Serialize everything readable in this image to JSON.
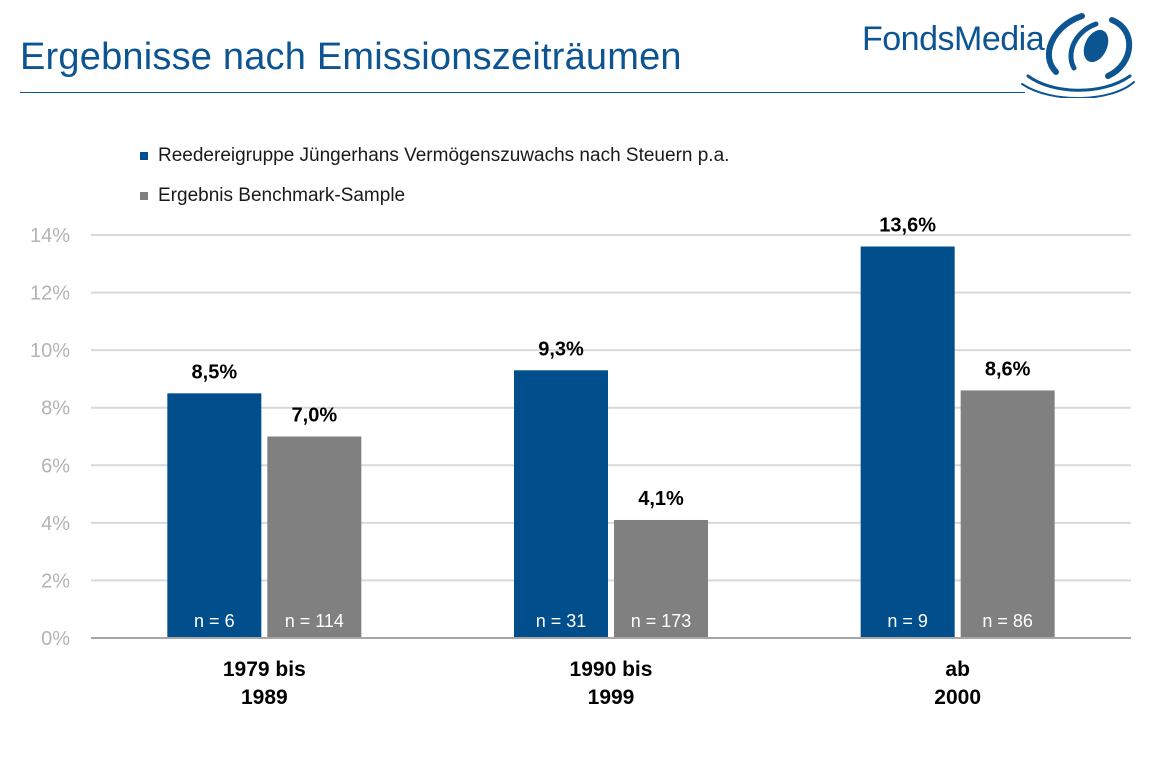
{
  "title": "Ergebnisse nach Emissionszeiträumen",
  "logo": {
    "text": "FondsMedia",
    "icon": "swirl-logo-icon"
  },
  "colors": {
    "title": "#0d5592",
    "blue": "#004e8c",
    "gray": "#808080",
    "axis_text": "#b3b3b3",
    "grid": "#d9d9d9"
  },
  "chart_data": {
    "type": "bar",
    "categories": [
      [
        "1979 bis",
        "1989"
      ],
      [
        "1990 bis",
        "1999"
      ],
      [
        "ab",
        "2000"
      ]
    ],
    "series": [
      {
        "name": "Reedereigruppe Jüngerhans Vermögenszuwachs nach Steuern p.a.",
        "color": "#004e8c",
        "values": [
          8.5,
          9.3,
          13.6
        ],
        "labels": [
          "8,5%",
          "9,3%",
          "13,6%"
        ],
        "n_labels": [
          "n = 6",
          "n = 31",
          "n = 9"
        ]
      },
      {
        "name": "Ergebnis Benchmark-Sample",
        "color": "#808080",
        "values": [
          7.0,
          4.1,
          8.6
        ],
        "labels": [
          "7,0%",
          "4,1%",
          "8,6%"
        ],
        "n_labels": [
          "n = 114",
          "n = 173",
          "n = 86"
        ]
      }
    ],
    "ylim": [
      0,
      14
    ],
    "yticks": [
      0,
      2,
      4,
      6,
      8,
      10,
      12,
      14
    ],
    "ytick_labels": [
      "0%",
      "2%",
      "4%",
      "6%",
      "8%",
      "10%",
      "12%",
      "14%"
    ],
    "grid": true,
    "legend_position": "top-left"
  }
}
